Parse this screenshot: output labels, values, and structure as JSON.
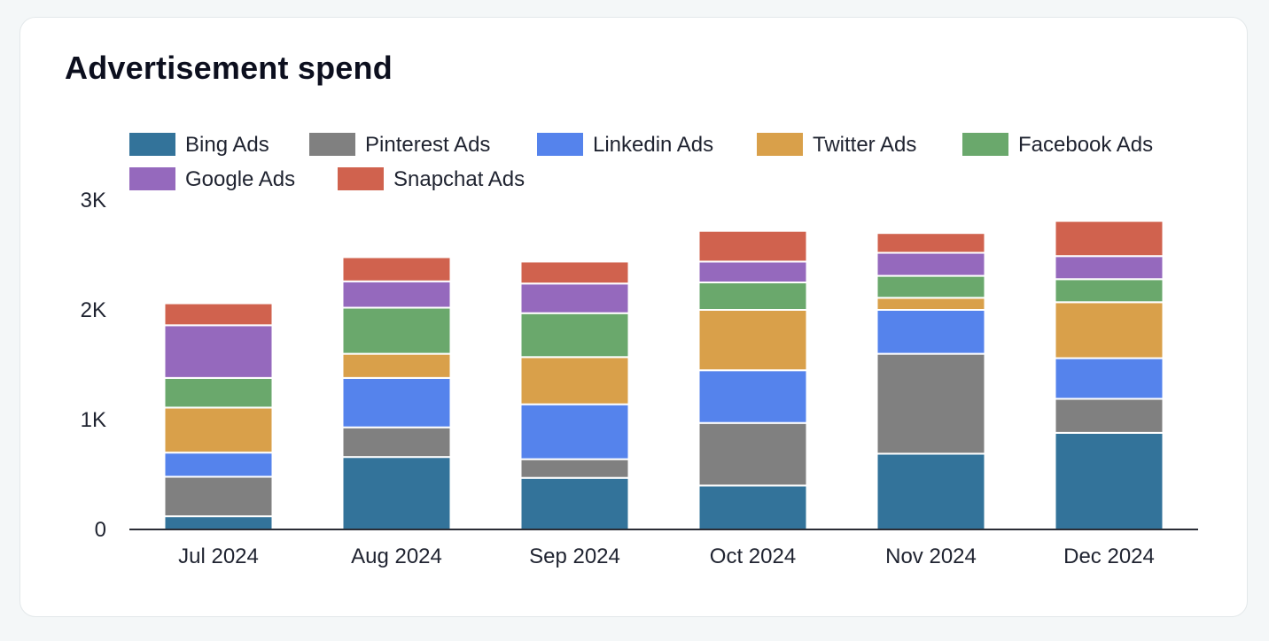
{
  "card": {
    "title": "Advertisement spend"
  },
  "chart_data": {
    "type": "bar",
    "stacked": true,
    "title": "Advertisement spend",
    "xlabel": "",
    "ylabel": "",
    "ylim": [
      0,
      3000
    ],
    "y_ticks": [
      {
        "value": 0,
        "label": "0"
      },
      {
        "value": 1000,
        "label": "1K"
      },
      {
        "value": 2000,
        "label": "2K"
      },
      {
        "value": 3000,
        "label": "3K"
      }
    ],
    "grid": false,
    "legend_position": "top",
    "categories": [
      "Jul 2024",
      "Aug 2024",
      "Sep 2024",
      "Oct 2024",
      "Nov 2024",
      "Dec 2024"
    ],
    "series": [
      {
        "name": "Bing Ads",
        "color": "#33739a",
        "values": [
          120,
          660,
          470,
          400,
          690,
          880
        ]
      },
      {
        "name": "Pinterest Ads",
        "color": "#808080",
        "values": [
          360,
          270,
          170,
          570,
          910,
          310
        ]
      },
      {
        "name": "Linkedin Ads",
        "color": "#5583ec",
        "values": [
          220,
          450,
          500,
          480,
          400,
          370
        ]
      },
      {
        "name": "Twitter Ads",
        "color": "#d9a04a",
        "values": [
          410,
          220,
          430,
          550,
          110,
          510
        ]
      },
      {
        "name": "Facebook Ads",
        "color": "#6aa86c",
        "values": [
          270,
          420,
          400,
          250,
          200,
          210
        ]
      },
      {
        "name": "Google Ads",
        "color": "#9569bd",
        "values": [
          480,
          240,
          270,
          190,
          210,
          210
        ]
      },
      {
        "name": "Snapchat Ads",
        "color": "#d0624e",
        "values": [
          200,
          220,
          200,
          280,
          180,
          320
        ]
      }
    ]
  }
}
